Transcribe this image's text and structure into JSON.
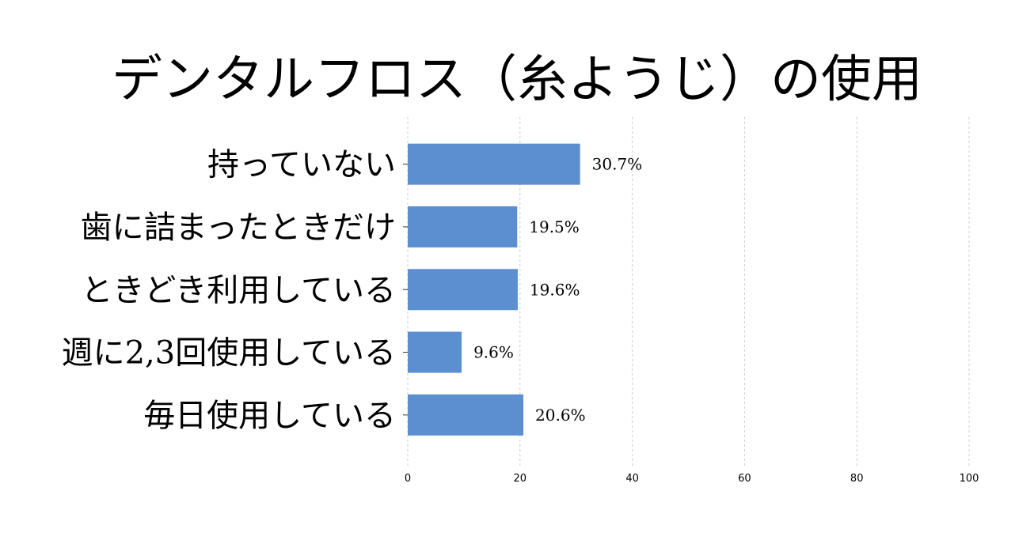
{
  "chart_data": {
    "type": "bar",
    "orientation": "horizontal",
    "title": "デンタルフロス（糸ようじ）の使用",
    "categories": [
      "持っていない",
      "歯に詰まったときだけ",
      "ときどき利用している",
      "週に2,3回使用している",
      "毎日使用している"
    ],
    "values": [
      30.7,
      19.5,
      19.6,
      9.6,
      20.6
    ],
    "value_labels": [
      "30.7%",
      "19.5%",
      "19.6%",
      "9.6%",
      "20.6%"
    ],
    "xlim": [
      0,
      100
    ],
    "xticks": [
      0,
      20,
      40,
      60,
      80,
      100
    ],
    "xtick_labels": [
      "0",
      "20",
      "40",
      "60",
      "80",
      "100"
    ],
    "grid": "vertical dashed",
    "legend": "none",
    "bar_color": "#5b8fd0"
  }
}
